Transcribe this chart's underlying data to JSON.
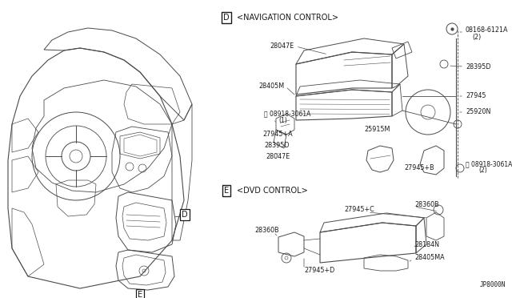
{
  "bg_color": "#ffffff",
  "fig_width": 6.4,
  "fig_height": 3.72,
  "dpi": 100,
  "line_color": "#4a4a4a",
  "text_color": "#1a1a1a",
  "diagram_code": "JP8000N",
  "section_D_label": "D",
  "section_D_title": "<NAVIGATION CONTROL>",
  "section_E_label": "E",
  "section_E_title": "<DVD CONTROL>",
  "lw_main": 0.7,
  "lw_thin": 0.5,
  "fs_label": 5.8,
  "fs_section": 7.0,
  "fs_code": 5.5
}
